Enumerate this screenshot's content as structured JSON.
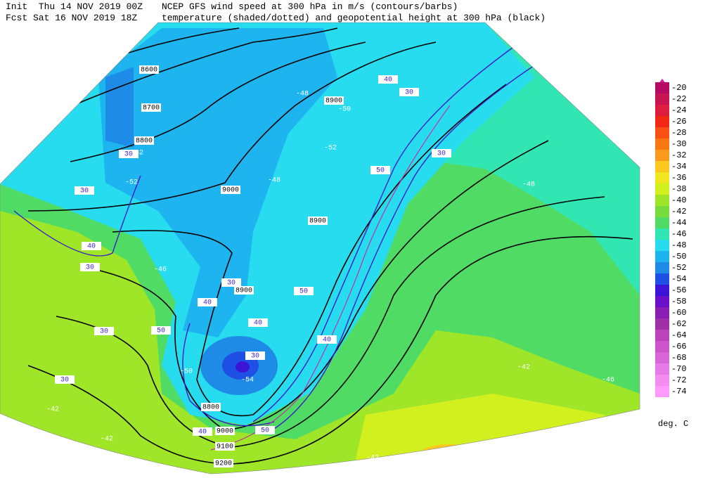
{
  "header": {
    "init": "Init  Thu 14 NOV 2019 00Z",
    "forecast": "Fcst Sat 16 NOV 2019 18Z",
    "line1": "NCEP GFS wind speed at 300 hPa in m/s (contours/barbs)",
    "line2": "temperature (shaded/dotted) and geopotential height at 300 hPa (black)"
  },
  "colorbar": {
    "levels": [
      -20,
      -22,
      -24,
      -26,
      -28,
      -30,
      -32,
      -34,
      -36,
      -38,
      -40,
      -42,
      -44,
      -46,
      -48,
      -50,
      -52,
      -54,
      -56,
      -58,
      -60,
      -62,
      -64,
      -66,
      -68,
      -70,
      -72,
      -74
    ],
    "colors": [
      "#b40a64",
      "#c81450",
      "#dc1e3c",
      "#f02814",
      "#fa5014",
      "#fa7814",
      "#fa9b1e",
      "#fac81e",
      "#f0e61e",
      "#d2f01e",
      "#a0e628",
      "#78dc3c",
      "#50dc64",
      "#32e6b4",
      "#28dcf0",
      "#1eb4f0",
      "#1e8ce6",
      "#1e50e6",
      "#3c14d8",
      "#6a10c8",
      "#8a1eb4",
      "#a030a8",
      "#bb44bb",
      "#cc55cc",
      "#d966d9",
      "#e67ae6",
      "#f58cf0",
      "#ff99ff"
    ],
    "units": "deg. C"
  },
  "height_labels": [
    8600,
    8700,
    8800,
    8900,
    9000,
    8900,
    8900,
    8800,
    9000,
    9100,
    9200
  ],
  "wind_labels": [
    30,
    30,
    30,
    30,
    30,
    30,
    30,
    30,
    30,
    40,
    40,
    40,
    40,
    40,
    40,
    50,
    50,
    50,
    50
  ],
  "temperature_labels": [
    -52,
    -52,
    -48,
    -46,
    -42,
    -46,
    -42,
    -42,
    -50,
    -54,
    -48,
    -50,
    -48,
    -52,
    -42
  ]
}
